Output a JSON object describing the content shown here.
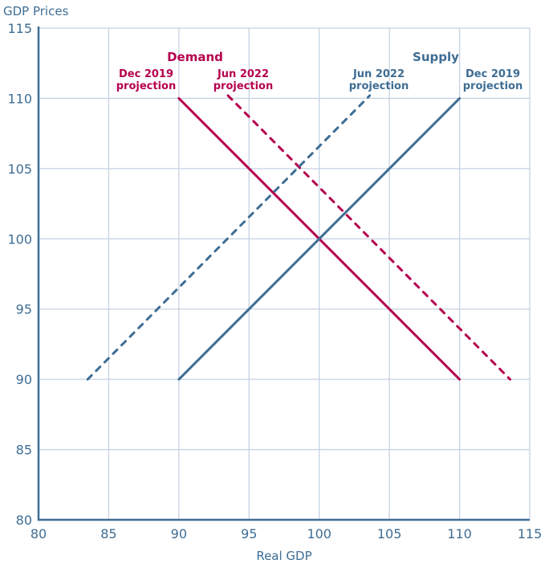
{
  "chart_data": {
    "type": "line",
    "title": "",
    "xlabel": "Real GDP",
    "ylabel": "GDP Prices",
    "xlim": [
      80,
      115
    ],
    "ylim": [
      80,
      115
    ],
    "xticks": [
      80,
      85,
      90,
      95,
      100,
      105,
      110,
      115
    ],
    "yticks": [
      80,
      85,
      90,
      95,
      100,
      105,
      110,
      115
    ],
    "grid": true,
    "colors": {
      "demand": "#b5004e",
      "supply": "#3e6d94",
      "axis": "#3e6d94",
      "grid": "#c5d3e2"
    },
    "series": [
      {
        "name": "Demand Dec 2019 projection",
        "group": "demand",
        "style": "solid",
        "points": [
          [
            90,
            110
          ],
          [
            110,
            90
          ]
        ]
      },
      {
        "name": "Demand Jun 2022 projection",
        "group": "demand",
        "style": "dashed",
        "points": [
          [
            93.5,
            110.2
          ],
          [
            113.6,
            90
          ]
        ]
      },
      {
        "name": "Supply Dec 2019 projection",
        "group": "supply",
        "style": "solid",
        "points": [
          [
            90,
            90
          ],
          [
            110,
            110
          ]
        ]
      },
      {
        "name": "Supply Jun 2022 projection",
        "group": "supply",
        "style": "dashed",
        "points": [
          [
            83.5,
            90
          ],
          [
            103.6,
            110.2
          ]
        ]
      }
    ],
    "annotations": {
      "demand_title": "Demand",
      "supply_title": "Supply",
      "demand_dec2019": [
        "Dec 2019",
        "projection"
      ],
      "demand_jun2022": [
        "Jun 2022",
        "projection"
      ],
      "supply_jun2022": [
        "Jun 2022",
        "projection"
      ],
      "supply_dec2019": [
        "Dec 2019",
        "projection"
      ]
    }
  }
}
